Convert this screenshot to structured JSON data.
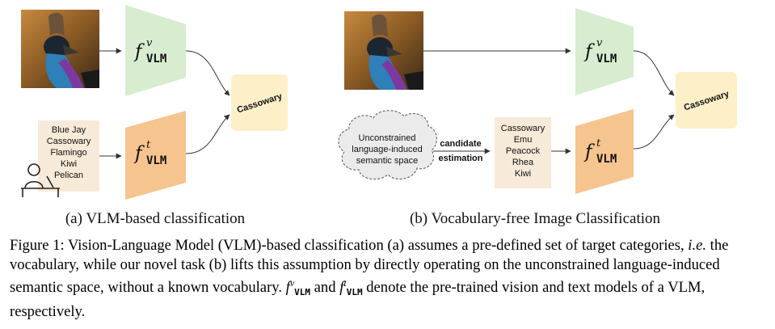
{
  "panel_a": {
    "f_symbol": "f",
    "f_sub": "VLM",
    "f_sup_vision": "v",
    "f_sup_text": "t",
    "output_label": "Cassowary",
    "vocabulary": [
      "Blue Jay",
      "Cassowary",
      "Flamingo",
      "Kiwi",
      "Pelican"
    ],
    "subcaption": "(a) VLM-based classification"
  },
  "panel_b": {
    "f_symbol": "f",
    "f_sub": "VLM",
    "f_sup_vision": "v",
    "f_sup_text": "t",
    "output_label": "Cassowary",
    "cloud_lines": [
      "Unconstrained",
      "language-induced",
      "semantic space"
    ],
    "arrow_label_lines": [
      "candidate",
      "estimation"
    ],
    "candidates": [
      "Cassowary",
      "Emu",
      "Peacock",
      "Rhea",
      "Kiwi"
    ],
    "subcaption": "(b) Vocabulary-free Image Classification"
  },
  "caption": {
    "prefix": "Figure 1: Vision-Language Model (VLM)-based classification (a) assumes a pre-defined set of target categories, ",
    "ie": "i.e.",
    "middle": " the vocabulary, while our novel task (b) lifts this assumption by directly operating on the unconstrained language-induced semantic space, without a known vocabulary. ",
    "f": "f",
    "sup_v": "v",
    "sub": "VLM",
    "and": " and ",
    "sup_t": "t",
    "suffix": " denote the pre-trained vision and text models of a VLM, respectively."
  },
  "colors": {
    "vision_encoder": "#d8ecd0",
    "text_encoder": "#f6c48f",
    "output_box": "#fdf0c8",
    "vocab_box": "#f8ead8",
    "cloud": "#ebebeb"
  }
}
